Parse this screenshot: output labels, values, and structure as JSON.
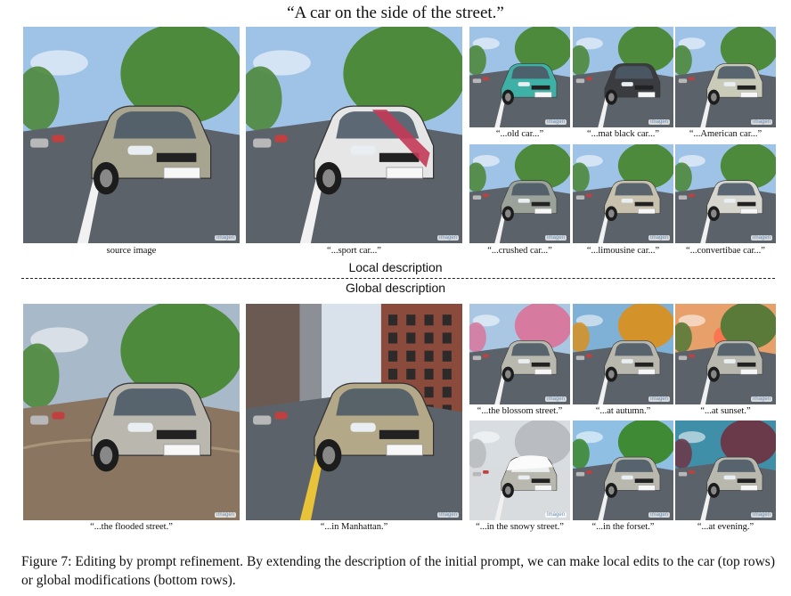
{
  "title": "“A car on the side of the street.”",
  "local_label": "Local description",
  "global_label": "Global description",
  "watermark": "Imagen",
  "top_row": {
    "large": [
      {
        "caption": "source image",
        "car_color": "#a7a590",
        "stripe": ""
      },
      {
        "caption": "“...sport car...”",
        "car_color": "#e6e6e6",
        "stripe": "#c33a57"
      }
    ],
    "small": [
      {
        "caption": "“...old car...”",
        "car_color": "#3fb0a6"
      },
      {
        "caption": "“...mat black car...”",
        "car_color": "#3a3c40"
      },
      {
        "caption": "“...American car...”",
        "car_color": "#c9cab8"
      },
      {
        "caption": "“...crushed car...”",
        "car_color": "#9aa29a"
      },
      {
        "caption": "“...limousine car...”",
        "car_color": "#c7c1ae"
      },
      {
        "caption": "“...convertibae car...”",
        "car_color": "#d6d6cf"
      }
    ]
  },
  "bottom_row": {
    "large": [
      {
        "caption": "“...the flooded street.”",
        "scene": "flood"
      },
      {
        "caption": "“...in Manhattan.”",
        "scene": "city"
      }
    ],
    "small": [
      {
        "caption": "“...the blossom street.”",
        "trees": "#d77aa0",
        "sky": "#a9c6e3"
      },
      {
        "caption": "“...at autumn.”",
        "trees": "#d4922a",
        "sky": "#7fb0d6"
      },
      {
        "caption": "“...at sunset.”",
        "trees": "#5a7a3a",
        "sky": "#e7a06a"
      },
      {
        "caption": "“...in the snowy street.”",
        "trees": "#b9bcc0",
        "sky": "#d8dde2"
      },
      {
        "caption": "“...in the forset.”",
        "trees": "#3f8a35",
        "sky": "#8fc0e4"
      },
      {
        "caption": "“...at evening.”",
        "trees": "#6b3a4a",
        "sky": "#3f8fa8"
      }
    ]
  },
  "figure_caption": "Figure 7: Editing by prompt refinement. By extending the description of the initial prompt, we can make local edits to the car (top rows) or global modifications (bottom rows)."
}
